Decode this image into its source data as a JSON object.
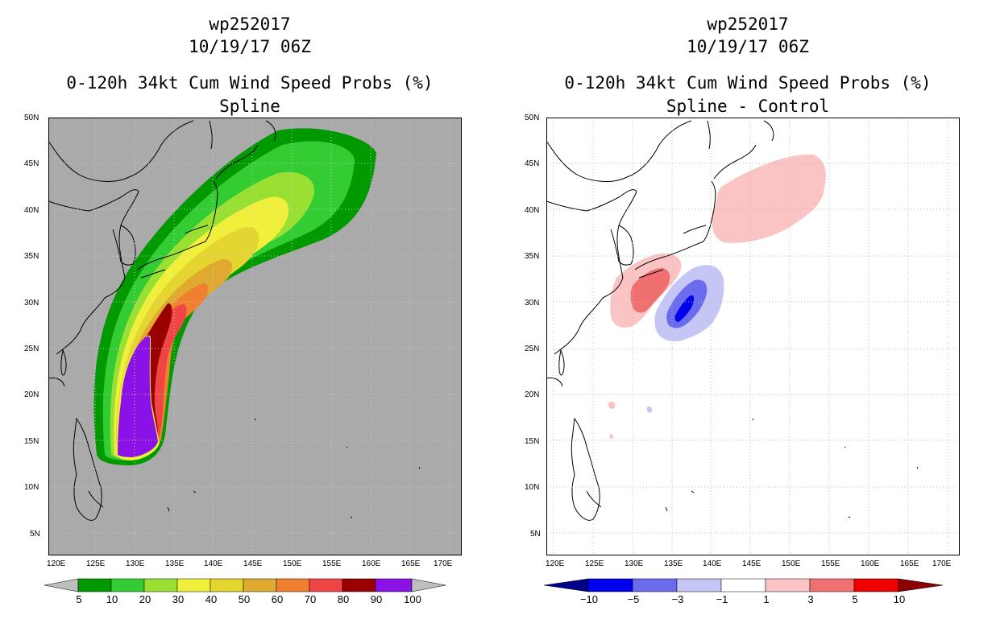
{
  "panels": [
    {
      "id": "left",
      "storm_id": "wp252017",
      "datetime": "10/19/17 06Z",
      "product": "0-120h 34kt Cum Wind Speed Probs (%)",
      "subtitle": "Spline",
      "colorbar_labels": [
        "5",
        "10",
        "20",
        "30",
        "40",
        "50",
        "60",
        "70",
        "80",
        "90",
        "100"
      ],
      "colorbar_colors": [
        "#bebebe",
        "#009900",
        "#33cc33",
        "#99e033",
        "#f0f03c",
        "#e5d530",
        "#e0aa30",
        "#f08030",
        "#f04545",
        "#990000",
        "#8a12e6",
        "#bebebe"
      ]
    },
    {
      "id": "right",
      "storm_id": "wp252017",
      "datetime": "10/19/17 06Z",
      "product": "0-120h 34kt Cum Wind Speed Probs (%)",
      "subtitle": "Spline - Control",
      "colorbar_labels": [
        "−10",
        "−5",
        "−3",
        "−1",
        "1",
        "3",
        "5",
        "10"
      ],
      "colorbar_colors": [
        "#00008b",
        "#0000ee",
        "#6b6bee",
        "#c6c6f6",
        "#ffffff",
        "#fac4c4",
        "#f07070",
        "#ee0000",
        "#8b0000"
      ]
    }
  ],
  "axes": {
    "lat_ticks": [
      "50N",
      "45N",
      "40N",
      "35N",
      "30N",
      "25N",
      "20N",
      "15N",
      "10N",
      "5N"
    ],
    "lon_ticks": [
      "120E",
      "125E",
      "130E",
      "135E",
      "140E",
      "145E",
      "150E",
      "155E",
      "160E",
      "165E",
      "170E"
    ]
  },
  "colors": {
    "ocean_fill_left": "#aaaaaa",
    "ocean_fill_right": "#ffffff",
    "coastline": "#000000",
    "grid": "#bbbbbb"
  }
}
